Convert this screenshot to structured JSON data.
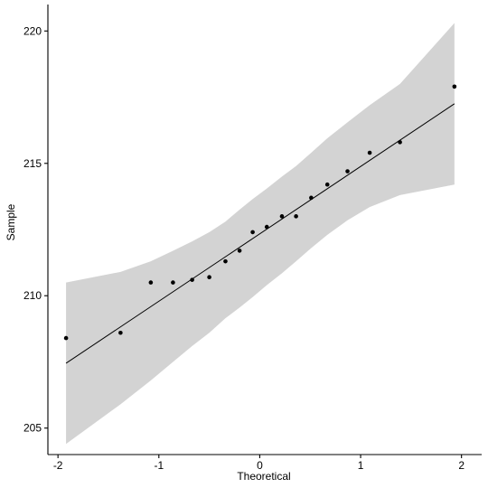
{
  "chart_data": {
    "type": "scatter",
    "title": "",
    "xlabel": "Theoretical",
    "ylabel": "Sample",
    "xlim": [
      -2.1,
      2.2
    ],
    "ylim": [
      204,
      221
    ],
    "x_ticks": [
      -2,
      -1,
      0,
      1,
      2
    ],
    "y_ticks": [
      205,
      210,
      215,
      220
    ],
    "x_tick_labels": [
      "-2",
      "-1",
      "0",
      "1",
      "2"
    ],
    "y_tick_labels": [
      "205",
      "210",
      "215",
      "220"
    ],
    "grid": false,
    "points": {
      "x": [
        -1.92,
        -1.38,
        -1.08,
        -0.86,
        -0.67,
        -0.5,
        -0.34,
        -0.2,
        -0.07,
        0.07,
        0.22,
        0.36,
        0.51,
        0.67,
        0.87,
        1.09,
        1.39,
        1.93
      ],
      "y": [
        208.4,
        208.6,
        210.5,
        210.5,
        210.6,
        210.7,
        211.3,
        211.7,
        212.4,
        212.6,
        213.0,
        213.0,
        213.7,
        214.2,
        214.7,
        215.4,
        215.8,
        217.9
      ]
    },
    "reference_line": {
      "x": [
        -1.92,
        1.93
      ],
      "y": [
        207.45,
        217.25
      ]
    },
    "confidence_band": {
      "x": [
        -1.92,
        -1.38,
        -1.08,
        -0.86,
        -0.67,
        -0.5,
        -0.34,
        -0.2,
        -0.07,
        0.07,
        0.22,
        0.36,
        0.51,
        0.67,
        0.87,
        1.09,
        1.39,
        1.93
      ],
      "lower": [
        204.4,
        205.9,
        206.8,
        207.5,
        208.1,
        208.6,
        209.15,
        209.55,
        209.95,
        210.4,
        210.85,
        211.3,
        211.8,
        212.3,
        212.85,
        213.35,
        213.8,
        214.2
      ],
      "upper": [
        210.5,
        210.9,
        211.3,
        211.7,
        212.05,
        212.4,
        212.8,
        213.25,
        213.65,
        214.05,
        214.5,
        214.9,
        215.4,
        215.95,
        216.55,
        217.2,
        218.0,
        220.3
      ]
    },
    "colors": {
      "band": "#d3d3d3",
      "points": "#000000",
      "line": "#000000",
      "axis": "#000000"
    }
  }
}
